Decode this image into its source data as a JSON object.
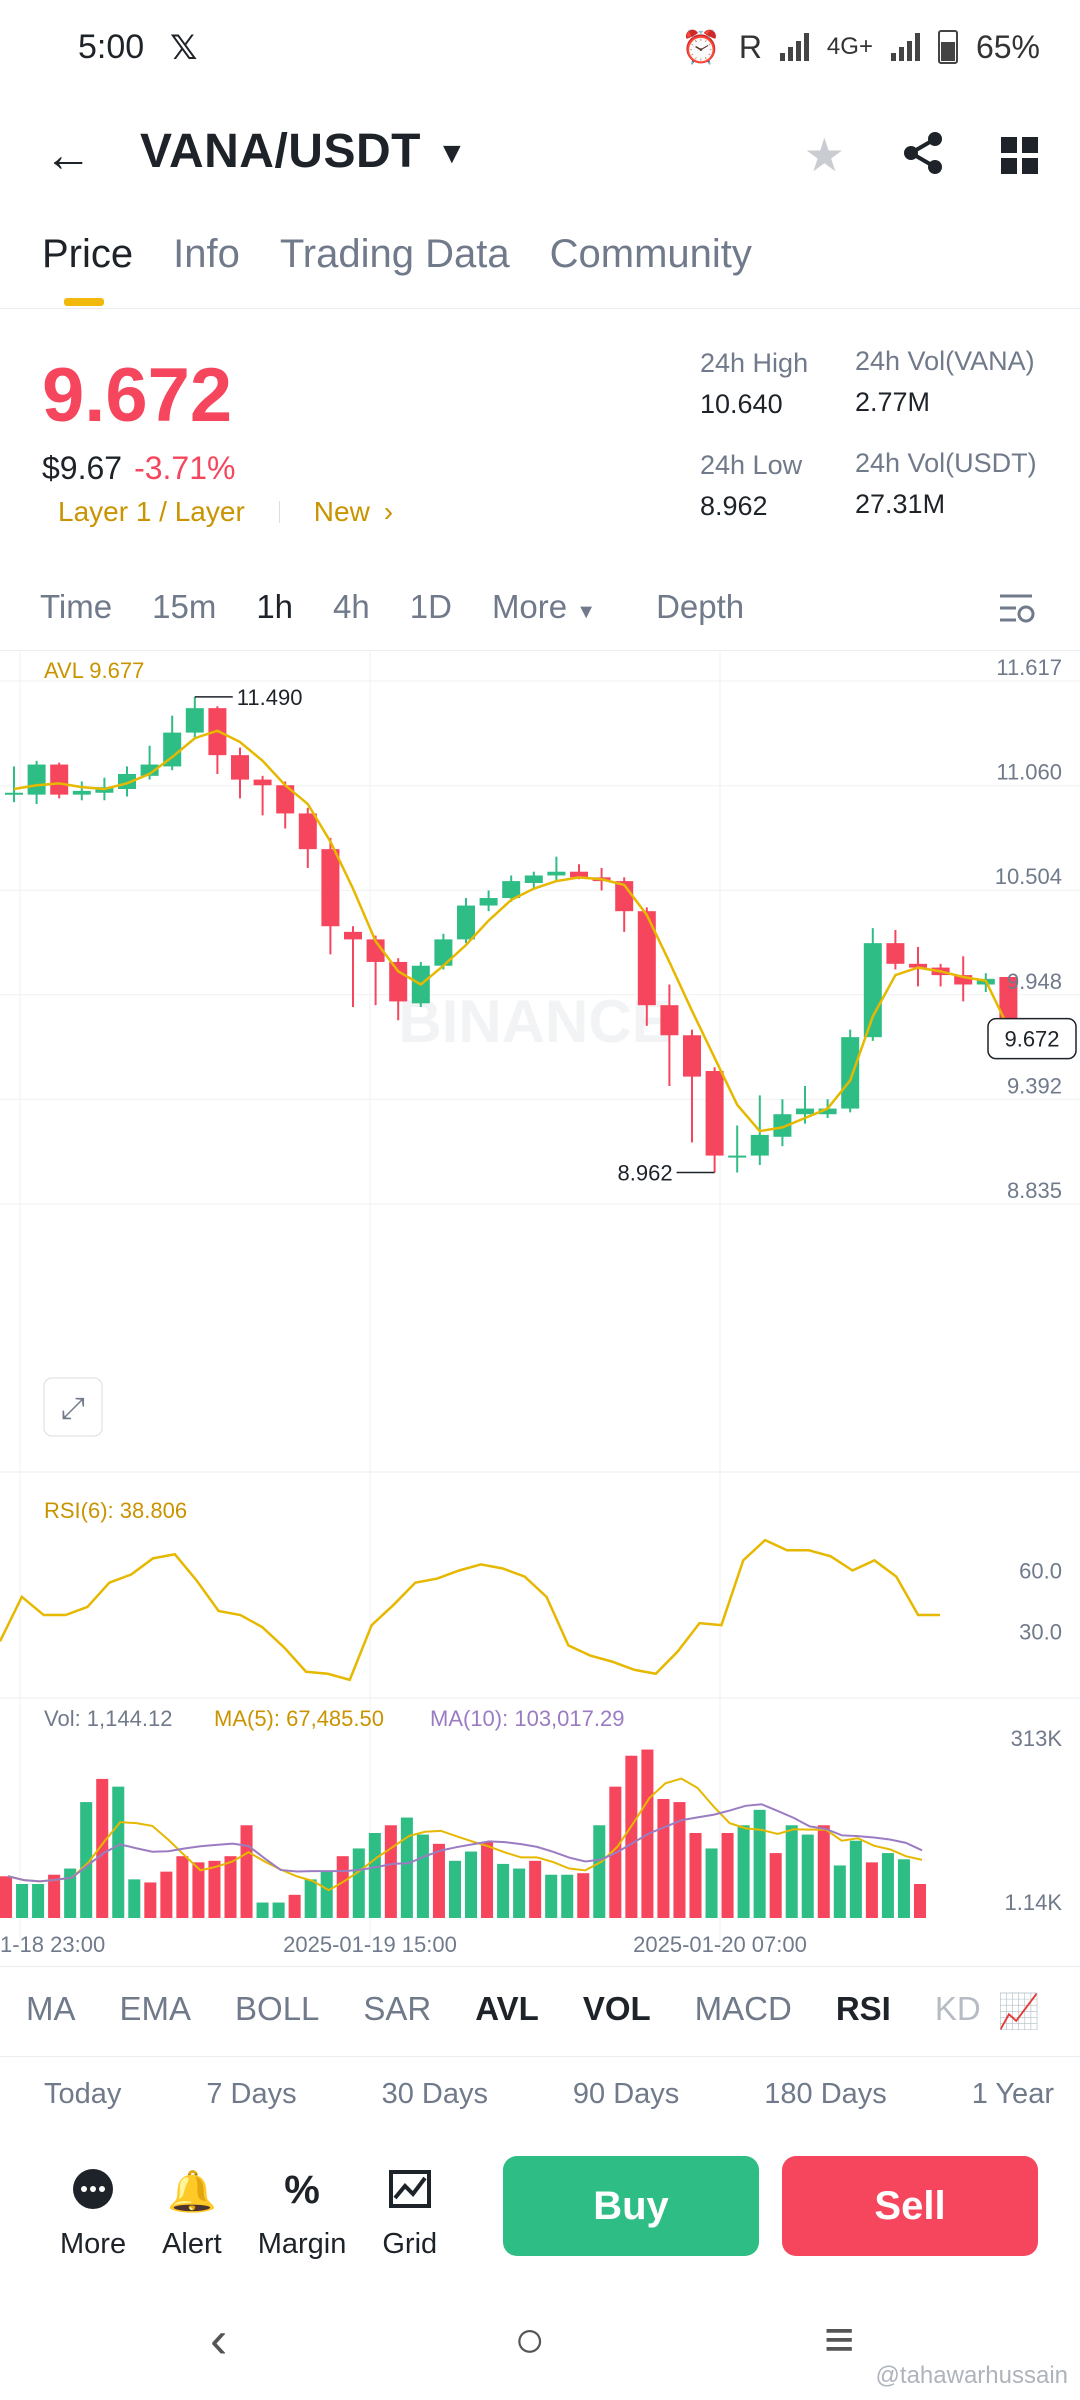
{
  "status_bar": {
    "time": "5:00",
    "app_icon": "x-logo",
    "indicators": "R",
    "network": "4G+",
    "battery": "65%"
  },
  "header": {
    "pair": "VANA/USDT",
    "icons": [
      "back-arrow-icon",
      "caret-down-icon",
      "star-icon",
      "share-icon",
      "grid-icon"
    ]
  },
  "tabs": [
    "Price",
    "Info",
    "Trading Data",
    "Community"
  ],
  "price": {
    "last": "9.672",
    "usd": "$9.67",
    "change": "-3.71%",
    "tag1": "Layer 1 / Layer",
    "tag2": "New",
    "high_label": "24h High",
    "high": "10.640",
    "low_label": "24h Low",
    "low": "8.962",
    "vol_vana_label": "24h Vol(VANA)",
    "vol_vana": "2.77M",
    "vol_usdt_label": "24h Vol(USDT)",
    "vol_usdt": "27.31M"
  },
  "intervals": {
    "items": [
      "Time",
      "15m",
      "1h",
      "4h",
      "1D"
    ],
    "more": "More",
    "depth": "Depth",
    "active": "1h"
  },
  "colors": {
    "up": "#2ebd85",
    "down": "#f6465d",
    "accent": "#f0b90b",
    "avl": "#e6b800",
    "ma10": "#9b7cc3"
  },
  "chart_data": {
    "type": "candlestick",
    "avl_label": "AVL 9.677",
    "watermark": "BINANCE",
    "y_ticks": [
      11.617,
      11.06,
      10.504,
      9.948,
      9.392,
      8.835
    ],
    "y_tick_labels": [
      "11.617",
      "11.060",
      "10.504",
      "9.948",
      "9.392",
      "8.835"
    ],
    "ylim": [
      8.835,
      11.617
    ],
    "high_marker": "11.490",
    "low_marker": "8.962",
    "last_price_label": "9.672",
    "x_labels": [
      "1-18 23:00",
      "2025-01-19 15:00",
      "2025-01-20 07:00"
    ],
    "candles": [
      {
        "o": 10.98,
        "h": 11.12,
        "l": 10.93,
        "c": 10.98
      },
      {
        "o": 10.97,
        "h": 11.15,
        "l": 10.92,
        "c": 11.13
      },
      {
        "o": 11.13,
        "h": 11.14,
        "l": 10.95,
        "c": 10.97
      },
      {
        "o": 10.97,
        "h": 11.04,
        "l": 10.94,
        "c": 10.99
      },
      {
        "o": 10.98,
        "h": 11.06,
        "l": 10.94,
        "c": 11.01
      },
      {
        "o": 11.0,
        "h": 11.12,
        "l": 10.96,
        "c": 11.08
      },
      {
        "o": 11.07,
        "h": 11.23,
        "l": 11.05,
        "c": 11.13
      },
      {
        "o": 11.12,
        "h": 11.39,
        "l": 11.1,
        "c": 11.3
      },
      {
        "o": 11.3,
        "h": 11.49,
        "l": 11.27,
        "c": 11.43
      },
      {
        "o": 11.43,
        "h": 11.44,
        "l": 11.08,
        "c": 11.18
      },
      {
        "o": 11.18,
        "h": 11.22,
        "l": 10.95,
        "c": 11.05
      },
      {
        "o": 11.05,
        "h": 11.07,
        "l": 10.86,
        "c": 11.02
      },
      {
        "o": 11.02,
        "h": 11.04,
        "l": 10.79,
        "c": 10.87
      },
      {
        "o": 10.87,
        "h": 10.9,
        "l": 10.58,
        "c": 10.68
      },
      {
        "o": 10.68,
        "h": 10.74,
        "l": 10.12,
        "c": 10.27
      },
      {
        "o": 10.24,
        "h": 10.27,
        "l": 9.84,
        "c": 10.2
      },
      {
        "o": 10.2,
        "h": 10.22,
        "l": 9.85,
        "c": 10.08
      },
      {
        "o": 10.08,
        "h": 10.1,
        "l": 9.77,
        "c": 9.87
      },
      {
        "o": 9.86,
        "h": 10.08,
        "l": 9.84,
        "c": 10.06
      },
      {
        "o": 10.06,
        "h": 10.23,
        "l": 10.04,
        "c": 10.2
      },
      {
        "o": 10.2,
        "h": 10.42,
        "l": 10.18,
        "c": 10.38
      },
      {
        "o": 10.38,
        "h": 10.46,
        "l": 10.35,
        "c": 10.42
      },
      {
        "o": 10.42,
        "h": 10.54,
        "l": 10.4,
        "c": 10.51
      },
      {
        "o": 10.5,
        "h": 10.56,
        "l": 10.47,
        "c": 10.54
      },
      {
        "o": 10.54,
        "h": 10.64,
        "l": 10.51,
        "c": 10.56
      },
      {
        "o": 10.56,
        "h": 10.6,
        "l": 10.52,
        "c": 10.53
      },
      {
        "o": 10.53,
        "h": 10.58,
        "l": 10.46,
        "c": 10.51
      },
      {
        "o": 10.51,
        "h": 10.53,
        "l": 10.24,
        "c": 10.35
      },
      {
        "o": 10.35,
        "h": 10.37,
        "l": 9.74,
        "c": 9.85
      },
      {
        "o": 9.85,
        "h": 9.96,
        "l": 9.42,
        "c": 9.69
      },
      {
        "o": 9.69,
        "h": 9.72,
        "l": 9.12,
        "c": 9.47
      },
      {
        "o": 9.5,
        "h": 9.52,
        "l": 8.96,
        "c": 9.05
      },
      {
        "o": 9.05,
        "h": 9.21,
        "l": 8.96,
        "c": 9.05
      },
      {
        "o": 9.05,
        "h": 9.37,
        "l": 9.0,
        "c": 9.16
      },
      {
        "o": 9.15,
        "h": 9.35,
        "l": 9.1,
        "c": 9.27
      },
      {
        "o": 9.27,
        "h": 9.42,
        "l": 9.22,
        "c": 9.3
      },
      {
        "o": 9.27,
        "h": 9.35,
        "l": 9.25,
        "c": 9.3
      },
      {
        "o": 9.3,
        "h": 9.72,
        "l": 9.28,
        "c": 9.68
      },
      {
        "o": 9.68,
        "h": 10.26,
        "l": 9.66,
        "c": 10.18
      },
      {
        "o": 10.18,
        "h": 10.25,
        "l": 10.04,
        "c": 10.07
      },
      {
        "o": 10.07,
        "h": 10.16,
        "l": 9.95,
        "c": 10.05
      },
      {
        "o": 10.05,
        "h": 10.07,
        "l": 9.95,
        "c": 10.01
      },
      {
        "o": 10.01,
        "h": 10.11,
        "l": 9.87,
        "c": 9.96
      },
      {
        "o": 9.96,
        "h": 10.02,
        "l": 9.92,
        "c": 9.99
      },
      {
        "o": 10.0,
        "h": 10.0,
        "l": 9.62,
        "c": 9.68
      }
    ],
    "ma_line": [
      11.0,
      11.02,
      11.03,
      11.01,
      11.0,
      11.03,
      11.08,
      11.17,
      11.27,
      11.31,
      11.25,
      11.15,
      11.02,
      10.92,
      10.72,
      10.47,
      10.19,
      10.03,
      9.96,
      10.06,
      10.17,
      10.3,
      10.41,
      10.47,
      10.51,
      10.53,
      10.52,
      10.49,
      10.33,
      10.08,
      9.82,
      9.57,
      9.32,
      9.18,
      9.2,
      9.25,
      9.3,
      9.45,
      9.79,
      10.01,
      10.05,
      10.03,
      10.0,
      9.98,
      9.73
    ],
    "rsi": {
      "label": "RSI(6): 38.806",
      "ticks": [
        "60.0",
        "30.0"
      ],
      "values": [
        25,
        47,
        38,
        38,
        42,
        54,
        58,
        66,
        68,
        55,
        40,
        38,
        32,
        22,
        10,
        9,
        6,
        33,
        43,
        54,
        56,
        60,
        63,
        61,
        57,
        47,
        23,
        18,
        15,
        11,
        9,
        20,
        34,
        33,
        65,
        75,
        70,
        70,
        67,
        60,
        65,
        57,
        38,
        38
      ]
    },
    "volume": {
      "label": "Vol: 1,144.12",
      "ma5_label": "MA(5): 67,485.50",
      "ma10_label": "MA(10): 103,017.29",
      "ticks": [
        "313K",
        "1.14K"
      ],
      "values": [
        27,
        22,
        22,
        28,
        32,
        75,
        90,
        85,
        25,
        23,
        30,
        40,
        36,
        37,
        40,
        60,
        10,
        10,
        15,
        25,
        30,
        40,
        45,
        55,
        60,
        65,
        54,
        48,
        37,
        43,
        49,
        35,
        32,
        37,
        28,
        28,
        29,
        60,
        85,
        105,
        109,
        77,
        75,
        55,
        45,
        55,
        60,
        70,
        42,
        60,
        54,
        60,
        34,
        50,
        36,
        42,
        38,
        22
      ]
    }
  },
  "indicators": [
    {
      "label": "MA",
      "bold": false
    },
    {
      "label": "EMA",
      "bold": false
    },
    {
      "label": "BOLL",
      "bold": false
    },
    {
      "label": "SAR",
      "bold": false
    },
    {
      "label": "AVL",
      "bold": true
    },
    {
      "label": "VOL",
      "bold": true
    },
    {
      "label": "MACD",
      "bold": false
    },
    {
      "label": "RSI",
      "bold": true
    },
    {
      "label": "KD",
      "bold": false
    }
  ],
  "periods": [
    "Today",
    "7 Days",
    "30 Days",
    "90 Days",
    "180 Days",
    "1 Year"
  ],
  "actions": {
    "more": "More",
    "alert": "Alert",
    "margin": "Margin",
    "grid": "Grid",
    "buy": "Buy",
    "sell": "Sell"
  },
  "watermark_user": "@tahawarhussain"
}
